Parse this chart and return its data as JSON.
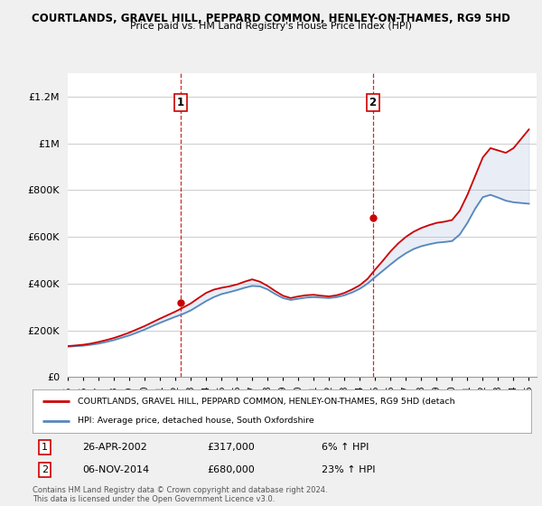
{
  "title": "COURTLANDS, GRAVEL HILL, PEPPARD COMMON, HENLEY-ON-THAMES, RG9 5HD",
  "subtitle": "Price paid vs. HM Land Registry's House Price Index (HPI)",
  "ylabel_ticks": [
    "£0",
    "£200K",
    "£400K",
    "£600K",
    "£800K",
    "£1M",
    "£1.2M"
  ],
  "ytick_values": [
    0,
    200000,
    400000,
    600000,
    800000,
    1000000,
    1200000
  ],
  "ylim": [
    0,
    1300000
  ],
  "xlim_start": 1995.0,
  "xlim_end": 2025.5,
  "sale1": {
    "date": 2002.32,
    "price": 317000,
    "label": "1",
    "text": "26-APR-2002",
    "amount": "£317,000",
    "pct": "6% ↑ HPI"
  },
  "sale2": {
    "date": 2014.84,
    "price": 680000,
    "label": "2",
    "text": "06-NOV-2014",
    "amount": "£680,000",
    "pct": "23% ↑ HPI"
  },
  "legend_line1": "COURTLANDS, GRAVEL HILL, PEPPARD COMMON, HENLEY-ON-THAMES, RG9 5HD (detach",
  "legend_line2": "HPI: Average price, detached house, South Oxfordshire",
  "footer": "Contains HM Land Registry data © Crown copyright and database right 2024.\nThis data is licensed under the Open Government Licence v3.0.",
  "line_color_red": "#cc0000",
  "line_color_blue": "#5588bb",
  "fill_color_blue": "#aabbdd",
  "background_color": "#f0f0f0",
  "plot_bg_color": "#ffffff",
  "grid_color": "#cccccc",
  "dashed_line_color": "#cc0000",
  "years": [
    1995.0,
    1995.5,
    1996.0,
    1996.5,
    1997.0,
    1997.5,
    1998.0,
    1998.5,
    1999.0,
    1999.5,
    2000.0,
    2000.5,
    2001.0,
    2001.5,
    2002.0,
    2002.5,
    2003.0,
    2003.5,
    2004.0,
    2004.5,
    2005.0,
    2005.5,
    2006.0,
    2006.5,
    2007.0,
    2007.5,
    2008.0,
    2008.5,
    2009.0,
    2009.5,
    2010.0,
    2010.5,
    2011.0,
    2011.5,
    2012.0,
    2012.5,
    2013.0,
    2013.5,
    2014.0,
    2014.5,
    2015.0,
    2015.5,
    2016.0,
    2016.5,
    2017.0,
    2017.5,
    2018.0,
    2018.5,
    2019.0,
    2019.5,
    2020.0,
    2020.5,
    2021.0,
    2021.5,
    2022.0,
    2022.5,
    2023.0,
    2023.5,
    2024.0,
    2024.5,
    2025.0
  ],
  "hpi_values": [
    130000,
    132000,
    134000,
    138000,
    143000,
    150000,
    158000,
    168000,
    178000,
    190000,
    203000,
    218000,
    232000,
    245000,
    258000,
    270000,
    285000,
    305000,
    325000,
    342000,
    355000,
    363000,
    372000,
    382000,
    390000,
    388000,
    375000,
    355000,
    338000,
    330000,
    335000,
    340000,
    342000,
    340000,
    338000,
    342000,
    350000,
    362000,
    378000,
    400000,
    428000,
    455000,
    482000,
    508000,
    530000,
    548000,
    560000,
    568000,
    575000,
    578000,
    582000,
    610000,
    660000,
    720000,
    770000,
    780000,
    768000,
    755000,
    748000,
    745000,
    742000
  ],
  "property_values": [
    132000,
    135000,
    138000,
    143000,
    150000,
    158000,
    167000,
    178000,
    190000,
    204000,
    218000,
    234000,
    250000,
    265000,
    280000,
    297000,
    315000,
    338000,
    360000,
    374000,
    382000,
    388000,
    396000,
    408000,
    418000,
    408000,
    390000,
    368000,
    348000,
    338000,
    345000,
    350000,
    352000,
    348000,
    345000,
    350000,
    360000,
    375000,
    393000,
    420000,
    460000,
    498000,
    538000,
    572000,
    600000,
    622000,
    638000,
    650000,
    660000,
    665000,
    672000,
    712000,
    780000,
    860000,
    940000,
    980000,
    970000,
    960000,
    980000,
    1020000,
    1060000
  ]
}
